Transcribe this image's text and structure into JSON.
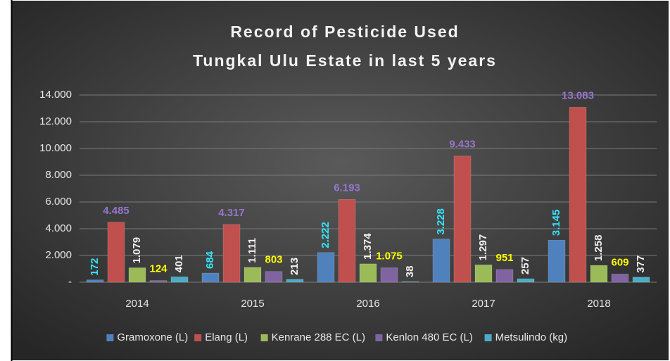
{
  "chart_data": {
    "type": "bar",
    "title": [
      "Record of Pesticide Used",
      "Tungkal Ulu Estate in last 5 years"
    ],
    "categories": [
      "2014",
      "2015",
      "2016",
      "2017",
      "2018"
    ],
    "series": [
      {
        "name": "Gramoxone (L)",
        "color": "#4f81bd",
        "label_color": "#33e6ff",
        "label_rotation": -90,
        "values": [
          172,
          684,
          2222,
          3228,
          3145
        ],
        "value_labels": [
          "172",
          "684",
          "2.222",
          "3.228",
          "3.145"
        ]
      },
      {
        "name": "Elang (L)",
        "color": "#c0504d",
        "label_color": "#9575cd",
        "label_rotation": 0,
        "values": [
          4485,
          4317,
          6193,
          9433,
          13083
        ],
        "value_labels": [
          "4.485",
          "4.317",
          "6.193",
          "9.433",
          "13.083"
        ]
      },
      {
        "name": "Kenrane 288 EC (L)",
        "color": "#9bbb59",
        "label_color": "#f2f2f2",
        "label_rotation": -90,
        "values": [
          1079,
          1111,
          1374,
          1297,
          1258
        ],
        "value_labels": [
          "1.079",
          "1.111",
          "1.374",
          "1.297",
          "1.258"
        ]
      },
      {
        "name": "Kenlon 480 EC (L)",
        "color": "#8064a2",
        "label_color": "#ffff00",
        "label_rotation": 0,
        "values": [
          124,
          803,
          1075,
          951,
          609
        ],
        "value_labels": [
          "124",
          "803",
          "1.075",
          "951",
          "609"
        ]
      },
      {
        "name": "Metsulindo (kg)",
        "color": "#4bacc6",
        "label_color": "#f2f2f2",
        "label_rotation": -90,
        "values": [
          401,
          213,
          38,
          257,
          377
        ],
        "value_labels": [
          "401",
          "213",
          "38",
          "257",
          "377"
        ]
      }
    ],
    "ylim": [
      0,
      14000
    ],
    "yticks": [
      {
        "value": 0,
        "label": "-"
      },
      {
        "value": 2000,
        "label": "2.000"
      },
      {
        "value": 4000,
        "label": "4.000"
      },
      {
        "value": 6000,
        "label": "6.000"
      },
      {
        "value": 8000,
        "label": "8.000"
      },
      {
        "value": 10000,
        "label": "10.000"
      },
      {
        "value": 12000,
        "label": "12.000"
      },
      {
        "value": 14000,
        "label": "14.000"
      }
    ],
    "grid": true
  }
}
